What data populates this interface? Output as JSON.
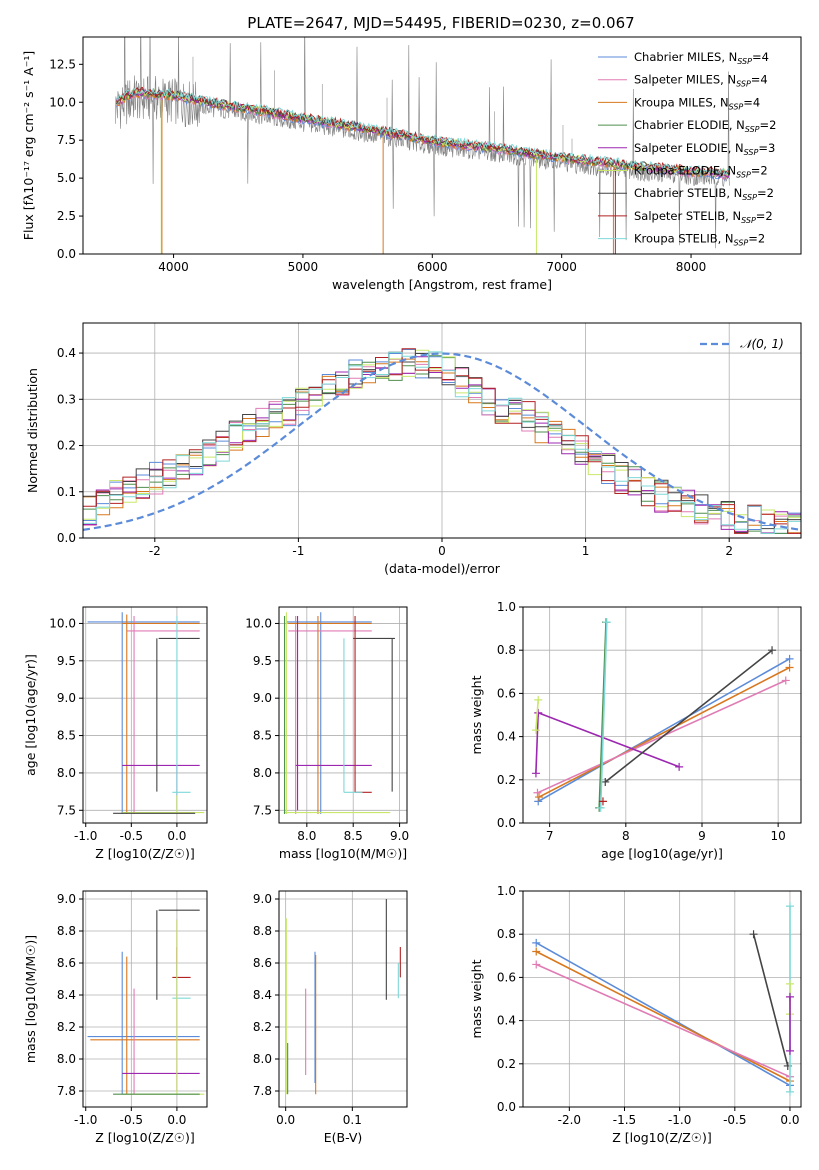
{
  "title": "PLATE=2647, MJD=54495, FIBERID=0230, z=0.067",
  "colors": {
    "chabrier_miles": "#5B8BD9",
    "salpeter_miles": "#E07BB4",
    "kroupa_miles": "#D8781E",
    "chabrier_elodie": "#4E8F4E",
    "salpeter_elodie": "#9C27B0",
    "kroupa_elodie": "#C9E86B",
    "chabrier_stelib": "#444444",
    "salpeter_stelib": "#B22222",
    "kroupa_stelib": "#7FD8D8",
    "observed": "#808080",
    "gauss": "#5B8BD9"
  },
  "legend_spectrum": [
    {
      "label": "Chabrier MILES, N",
      "sub": "SSP",
      "tail": "=4",
      "color": "#5B8BD9"
    },
    {
      "label": "Salpeter MILES, N",
      "sub": "SSP",
      "tail": "=4",
      "color": "#E07BB4"
    },
    {
      "label": "Kroupa MILES, N",
      "sub": "SSP",
      "tail": "=4",
      "color": "#D8781E"
    },
    {
      "label": "Chabrier ELODIE, N",
      "sub": "SSP",
      "tail": "=2",
      "color": "#4E8F4E"
    },
    {
      "label": "Salpeter ELODIE, N",
      "sub": "SSP",
      "tail": "=3",
      "color": "#9C27B0"
    },
    {
      "label": "Kroupa ELODIE, N",
      "sub": "SSP",
      "tail": "=2",
      "color": "#C9E86B"
    },
    {
      "label": "Chabrier STELIB, N",
      "sub": "SSP",
      "tail": "=2",
      "color": "#444444"
    },
    {
      "label": "Salpeter STELIB, N",
      "sub": "SSP",
      "tail": "=2",
      "color": "#B22222"
    },
    {
      "label": "Kroupa STELIB, N",
      "sub": "SSP",
      "tail": "=2",
      "color": "#7FD8D8"
    }
  ],
  "legend_gauss": "𝒩(0, 1)",
  "chart_data": [
    {
      "id": "spectrum",
      "type": "line",
      "xlabel": "wavelength [Angstrom, rest frame]",
      "ylabel": "Flux [fλ10⁻¹⁷ erg cm⁻² s⁻¹ A⁻¹]",
      "xlim": [
        3300,
        8850
      ],
      "ylim": [
        0,
        14.3
      ],
      "xticks": [
        4000,
        5000,
        6000,
        7000,
        8000
      ],
      "yticks": [
        0.0,
        2.5,
        5.0,
        7.5,
        10.0,
        12.5
      ],
      "continuum": {
        "x": [
          3550,
          3700,
          4000,
          4300,
          4600,
          5000,
          5500,
          6000,
          6500,
          7000,
          7500,
          8000,
          8300
        ],
        "y": [
          9.6,
          10.3,
          10.1,
          9.6,
          9.2,
          8.6,
          7.9,
          7.1,
          6.6,
          6.0,
          5.5,
          5.1,
          4.9
        ]
      }
    },
    {
      "id": "residuals",
      "type": "step",
      "xlabel": "(data-model)/error",
      "ylabel": "Normed distribution",
      "xlim": [
        -2.5,
        2.5
      ],
      "ylim": [
        0,
        0.465
      ],
      "xticks": [
        -2,
        -1,
        0,
        1,
        2
      ],
      "yticks": [
        0.0,
        0.1,
        0.2,
        0.3,
        0.4
      ],
      "grid": true,
      "series_base": [
        0.06,
        0.07,
        0.09,
        0.1,
        0.12,
        0.13,
        0.14,
        0.16,
        0.17,
        0.19,
        0.2,
        0.22,
        0.24,
        0.25,
        0.26,
        0.27,
        0.29,
        0.31,
        0.32,
        0.34,
        0.35,
        0.36,
        0.37,
        0.37,
        0.38,
        0.38,
        0.37,
        0.36,
        0.34,
        0.32,
        0.3,
        0.28,
        0.27,
        0.26,
        0.24,
        0.22,
        0.21,
        0.19,
        0.17,
        0.15,
        0.13,
        0.12,
        0.1,
        0.09,
        0.08,
        0.07,
        0.06,
        0.05,
        0.05,
        0.04,
        0.04,
        0.03,
        0.03,
        0.02
      ]
    },
    {
      "id": "age_vs_Z",
      "type": "errorbar",
      "xlabel": "Z [log10(Z/Z☉)]",
      "ylabel": "age  [log10(age/yr)]",
      "xlim": [
        -1.03,
        0.33
      ],
      "ylim": [
        7.33,
        10.22
      ],
      "xticks": [
        -1.0,
        -0.5,
        0.0
      ],
      "yticks": [
        7.5,
        8.0,
        8.5,
        9.0,
        9.5,
        10.0
      ]
    },
    {
      "id": "age_vs_mass",
      "type": "errorbar",
      "xlabel": "mass [log10(M/M☉)]",
      "ylabel": "",
      "xlim": [
        7.7,
        9.08
      ],
      "ylim": [
        7.33,
        10.22
      ],
      "xticks": [
        8.0,
        8.5,
        9.0
      ],
      "yticks": [
        7.5,
        8.0,
        8.5,
        9.0,
        9.5,
        10.0
      ]
    },
    {
      "id": "weight_vs_age",
      "type": "line",
      "xlabel": "age  [log10(age/yr)]",
      "ylabel": "mass weight",
      "xlim": [
        6.65,
        10.3
      ],
      "ylim": [
        0,
        1.0
      ],
      "xticks": [
        7,
        8,
        9,
        10
      ],
      "yticks": [
        0.0,
        0.2,
        0.4,
        0.6,
        0.8,
        1.0
      ],
      "series": [
        {
          "color": "#5B8BD9",
          "x": [
            6.85,
            10.15
          ],
          "y": [
            0.1,
            0.76
          ]
        },
        {
          "color": "#D8781E",
          "x": [
            6.86,
            10.15
          ],
          "y": [
            0.12,
            0.72
          ]
        },
        {
          "color": "#E07BB4",
          "x": [
            6.84,
            10.1
          ],
          "y": [
            0.14,
            0.66
          ]
        },
        {
          "color": "#9C27B0",
          "x": [
            6.82,
            6.85,
            8.7
          ],
          "y": [
            0.23,
            0.51,
            0.26
          ]
        },
        {
          "color": "#444444",
          "x": [
            7.73,
            9.92
          ],
          "y": [
            0.19,
            0.8
          ]
        },
        {
          "color": "#4E8F4E",
          "x": [
            7.65,
            7.74
          ],
          "y": [
            0.07,
            0.93
          ]
        },
        {
          "color": "#7FD8D8",
          "x": [
            7.67,
            7.75
          ],
          "y": [
            0.07,
            0.93
          ]
        },
        {
          "color": "#C9E86B",
          "x": [
            6.82,
            6.85
          ],
          "y": [
            0.43,
            0.57
          ]
        },
        {
          "color": "#B22222",
          "x": [
            7.7
          ],
          "y": [
            0.1
          ]
        }
      ]
    },
    {
      "id": "mass_vs_Z",
      "type": "errorbar",
      "xlabel": "Z [log10(Z/Z☉)]",
      "ylabel": "mass [log10(M/M☉)]",
      "xlim": [
        -1.03,
        0.33
      ],
      "ylim": [
        7.7,
        9.05
      ],
      "xticks": [
        -1.0,
        -0.5,
        0.0
      ],
      "yticks": [
        7.8,
        8.0,
        8.2,
        8.4,
        8.6,
        8.8,
        9.0
      ]
    },
    {
      "id": "mass_vs_ebv",
      "type": "errorbar",
      "xlabel": "E(B-V)",
      "ylabel": "",
      "xlim": [
        -0.01,
        0.182
      ],
      "ylim": [
        7.7,
        9.05
      ],
      "xticks": [
        0.0,
        0.1
      ],
      "yticks": [
        7.8,
        8.0,
        8.2,
        8.4,
        8.6,
        8.8,
        9.0
      ]
    },
    {
      "id": "weight_vs_Z",
      "type": "line",
      "xlabel": "Z [log10(Z/Z☉)]",
      "ylabel": "mass weight",
      "xlim": [
        -2.42,
        0.1
      ],
      "ylim": [
        0,
        1.0
      ],
      "xticks": [
        -2.0,
        -1.5,
        -1.0,
        -0.5,
        0.0
      ],
      "yticks": [
        0.0,
        0.2,
        0.4,
        0.6,
        0.8,
        1.0
      ],
      "series": [
        {
          "color": "#5B8BD9",
          "x": [
            -2.3,
            0.0
          ],
          "y": [
            0.76,
            0.1
          ]
        },
        {
          "color": "#D8781E",
          "x": [
            -2.3,
            0.0
          ],
          "y": [
            0.72,
            0.12
          ]
        },
        {
          "color": "#E07BB4",
          "x": [
            -2.3,
            0.0
          ],
          "y": [
            0.66,
            0.14
          ]
        },
        {
          "color": "#444444",
          "x": [
            -0.33,
            -0.02
          ],
          "y": [
            0.8,
            0.19
          ]
        },
        {
          "color": "#7FD8D8",
          "x": [
            0.0,
            0.0
          ],
          "y": [
            0.07,
            0.93
          ]
        },
        {
          "color": "#C9E86B",
          "x": [
            0.0,
            0.0
          ],
          "y": [
            0.43,
            0.57
          ]
        },
        {
          "color": "#9C27B0",
          "x": [
            0.0,
            0.0
          ],
          "y": [
            0.26,
            0.51
          ]
        }
      ]
    }
  ]
}
